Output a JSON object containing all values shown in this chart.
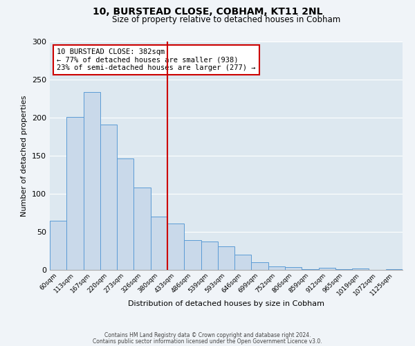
{
  "title": "10, BURSTEAD CLOSE, COBHAM, KT11 2NL",
  "subtitle": "Size of property relative to detached houses in Cobham",
  "xlabel": "Distribution of detached houses by size in Cobham",
  "ylabel": "Number of detached properties",
  "bar_color": "#c9d9ea",
  "bar_edge_color": "#5b9bd5",
  "background_color": "#dde8f0",
  "grid_color": "#ffffff",
  "fig_bg_color": "#f0f4f8",
  "bin_labels": [
    "60sqm",
    "113sqm",
    "167sqm",
    "220sqm",
    "273sqm",
    "326sqm",
    "380sqm",
    "433sqm",
    "486sqm",
    "539sqm",
    "593sqm",
    "646sqm",
    "699sqm",
    "752sqm",
    "806sqm",
    "859sqm",
    "912sqm",
    "965sqm",
    "1019sqm",
    "1072sqm",
    "1125sqm"
  ],
  "bar_values": [
    65,
    201,
    234,
    191,
    146,
    108,
    70,
    61,
    39,
    37,
    31,
    20,
    10,
    5,
    4,
    1,
    3,
    1,
    2,
    0,
    1
  ],
  "vline_color": "#cc0000",
  "annotation_text": "10 BURSTEAD CLOSE: 382sqm\n← 77% of detached houses are smaller (938)\n23% of semi-detached houses are larger (277) →",
  "annotation_box_color": "#ffffff",
  "annotation_box_edge": "#cc0000",
  "ylim": [
    0,
    300
  ],
  "yticks": [
    0,
    50,
    100,
    150,
    200,
    250,
    300
  ],
  "footer_line1": "Contains HM Land Registry data © Crown copyright and database right 2024.",
  "footer_line2": "Contains public sector information licensed under the Open Government Licence v3.0."
}
